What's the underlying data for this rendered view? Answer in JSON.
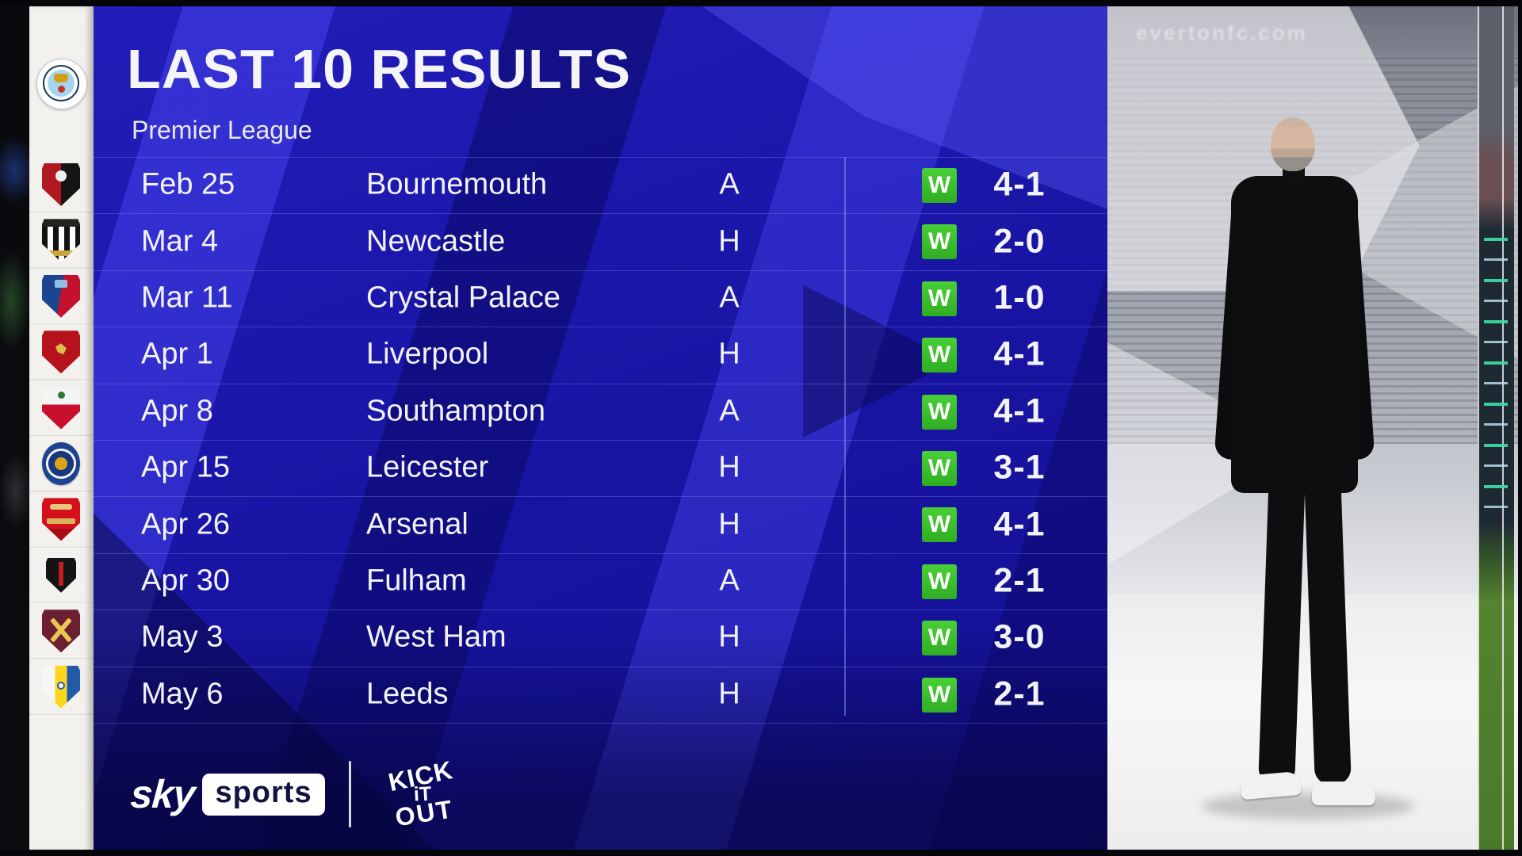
{
  "header": {
    "title": "LAST 10 RESULTS",
    "subtitle": "Premier League"
  },
  "team": {
    "name": "Manchester City"
  },
  "table": {
    "rows": [
      {
        "date": "Feb 25",
        "opponent": "Bournemouth",
        "venue": "A",
        "result": "W",
        "score": "4-1",
        "badge_style": "bournemouth"
      },
      {
        "date": "Mar 4",
        "opponent": "Newcastle",
        "venue": "H",
        "result": "W",
        "score": "2-0",
        "badge_style": "newcastle"
      },
      {
        "date": "Mar 11",
        "opponent": "Crystal Palace",
        "venue": "A",
        "result": "W",
        "score": "1-0",
        "badge_style": "crystal-palace"
      },
      {
        "date": "Apr 1",
        "opponent": "Liverpool",
        "venue": "H",
        "result": "W",
        "score": "4-1",
        "badge_style": "liverpool"
      },
      {
        "date": "Apr 8",
        "opponent": "Southampton",
        "venue": "A",
        "result": "W",
        "score": "4-1",
        "badge_style": "southampton"
      },
      {
        "date": "Apr 15",
        "opponent": "Leicester",
        "venue": "H",
        "result": "W",
        "score": "3-1",
        "badge_style": "leicester"
      },
      {
        "date": "Apr 26",
        "opponent": "Arsenal",
        "venue": "H",
        "result": "W",
        "score": "4-1",
        "badge_style": "arsenal"
      },
      {
        "date": "Apr 30",
        "opponent": "Fulham",
        "venue": "A",
        "result": "W",
        "score": "2-1",
        "badge_style": "fulham"
      },
      {
        "date": "May 3",
        "opponent": "West Ham",
        "venue": "H",
        "result": "W",
        "score": "3-0",
        "badge_style": "west-ham"
      },
      {
        "date": "May 6",
        "opponent": "Leeds",
        "venue": "H",
        "result": "W",
        "score": "2-1",
        "badge_style": "leeds"
      }
    ]
  },
  "footer": {
    "sky": "sky",
    "sports": "sports",
    "kick_it_out": [
      "KICK",
      "iT",
      "OUT"
    ]
  },
  "photo": {
    "signage": "evertonfc.com"
  },
  "colors": {
    "panel_blue": "#1a16a8",
    "win_green": "#3bbf2d",
    "rail_white": "#f3f1ed",
    "text": "#f2f2f7"
  }
}
